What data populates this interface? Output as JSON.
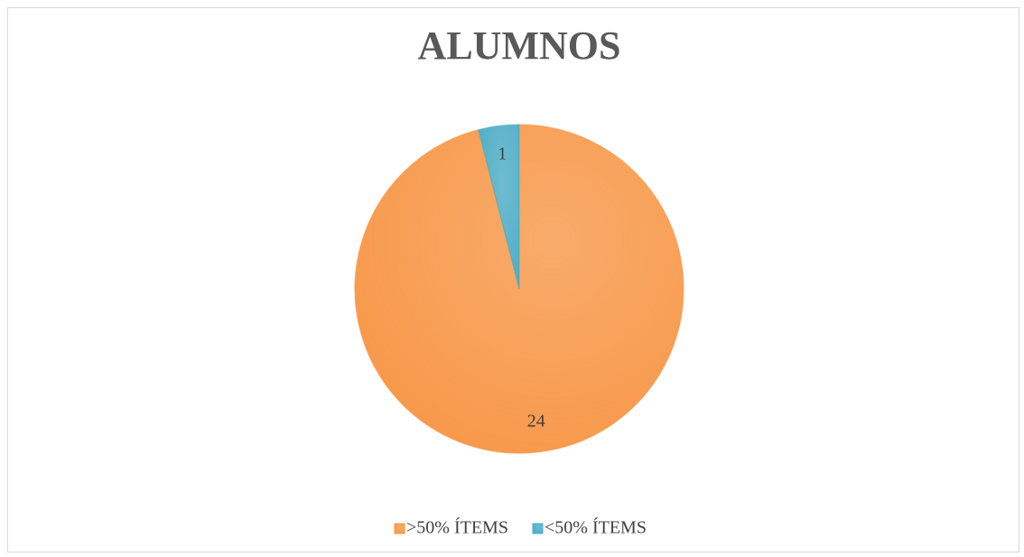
{
  "chart_data": {
    "type": "pie",
    "title": "ALUMNOS",
    "categories": [
      ">50% ÍTEMS",
      "<50% ÍTEMS"
    ],
    "values": [
      24,
      1
    ],
    "colors": [
      "#f79646",
      "#4bacc6"
    ],
    "legend": "bottom"
  }
}
